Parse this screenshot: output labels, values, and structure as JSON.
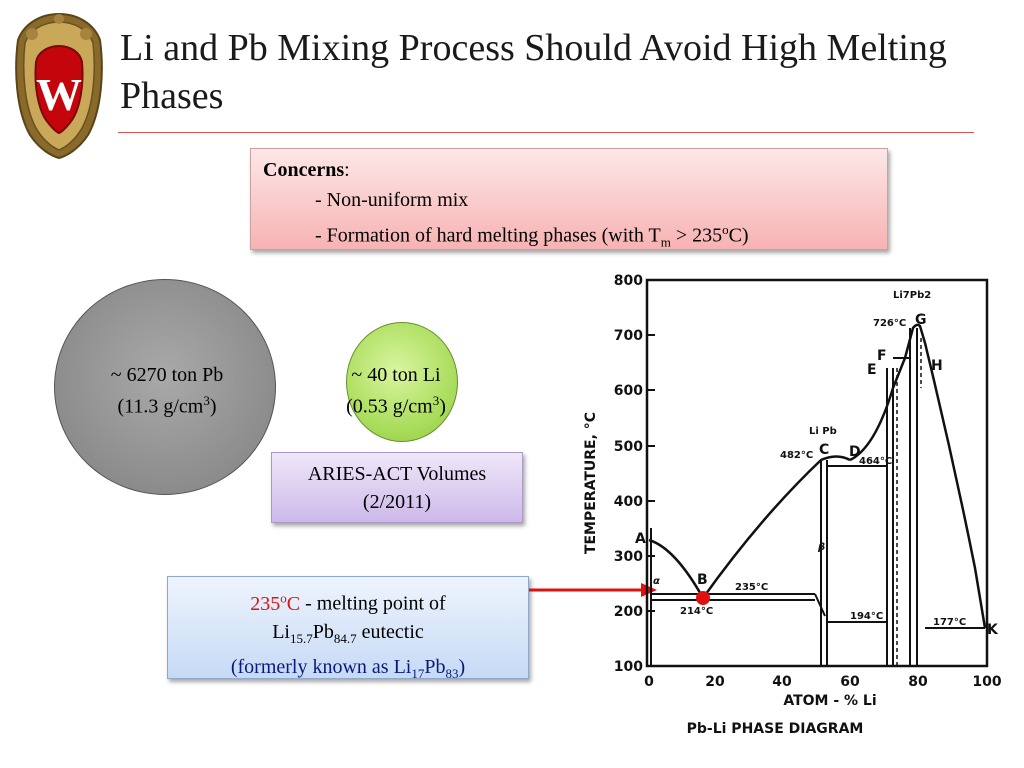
{
  "title": "Li and Pb Mixing Process Should Avoid High Melting Phases",
  "concerns": {
    "heading": "Concerns",
    "colon": ":",
    "item1": "- Non-uniform mix",
    "item2_a": "- Formation of hard melting phases (with T",
    "item2_sub": "m",
    "item2_b": " > 235",
    "item2_sup": "o",
    "item2_c": "C)"
  },
  "pb_label": {
    "line1": "~ 6270 ton Pb",
    "line2_a": "(11.3 g/cm",
    "line2_sup": "3",
    "line2_b": ")"
  },
  "li_label": {
    "line1": "~ 40 ton Li",
    "line2_a": "(0.53 g/cm",
    "line2_sup": "3",
    "line2_b": ")"
  },
  "aries": {
    "line1": "ARIES-ACT Volumes",
    "line2": "(2/2011)"
  },
  "melting": {
    "temp": "235",
    "temp_sup": "o",
    "temp_unit": "C",
    "rest1": " - melting point of",
    "li": "Li",
    "li_sub": "15.7",
    "pb": "Pb",
    "pb_sub": "84.7",
    "eutectic": " eutectic",
    "former_a": "(formerly known as Li",
    "former_sub1": "17",
    "former_pb": "Pb",
    "former_sub2": "83",
    "former_b": ")"
  },
  "diagram": {
    "y_axis_label": "TEMPERATURE, °C",
    "x_axis_label": "ATOM - %  Li",
    "caption": "Pb-Li  PHASE  DIAGRAM",
    "y_ticks": [
      "800",
      "700",
      "600",
      "500",
      "400",
      "300",
      "200",
      "100"
    ],
    "x_ticks": [
      "0",
      "20",
      "40",
      "60",
      "80",
      "100"
    ],
    "points": {
      "A": "A",
      "B": "B",
      "C": "C",
      "D": "D",
      "E": "E",
      "F": "F",
      "G": "G",
      "H": "H",
      "K": "K"
    },
    "annotations": {
      "t235": "235°C",
      "t214": "214°C",
      "t482": "482°C",
      "t464": "464°C",
      "t726": "726°C",
      "t194": "194°C",
      "t177": "177°C",
      "lipb": "Li Pb",
      "li7pb2": "Li7Pb2",
      "beta": "β",
      "alpha": "α"
    },
    "highlight_color": "#e01010"
  }
}
